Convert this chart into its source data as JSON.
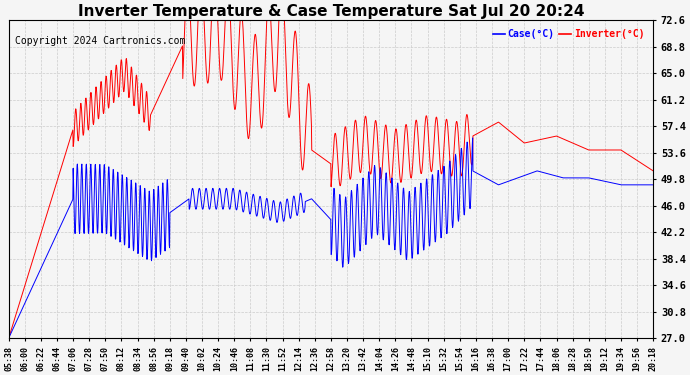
{
  "title": "Inverter Temperature & Case Temperature Sat Jul 20 20:24",
  "copyright": "Copyright 2024 Cartronics.com",
  "ylabel_right_ticks": [
    27.0,
    30.8,
    34.6,
    38.4,
    42.2,
    46.0,
    49.8,
    53.6,
    57.4,
    61.2,
    65.0,
    68.8,
    72.6
  ],
  "ylim": [
    27.0,
    72.6
  ],
  "legend_labels": [
    "Case(°C)",
    "Inverter(°C)"
  ],
  "legend_colors": [
    "blue",
    "red"
  ],
  "title_fontsize": 11,
  "copyright_fontsize": 7,
  "background_color": "#f5f5f5",
  "grid_color": "#cccccc",
  "x_tick_labels": [
    "05:38",
    "06:00",
    "06:22",
    "06:44",
    "07:06",
    "07:28",
    "07:50",
    "08:12",
    "08:34",
    "08:56",
    "09:18",
    "09:40",
    "10:02",
    "10:24",
    "10:46",
    "11:08",
    "11:30",
    "11:52",
    "12:14",
    "12:36",
    "12:58",
    "13:20",
    "13:42",
    "14:04",
    "14:26",
    "14:48",
    "15:10",
    "15:32",
    "15:54",
    "16:16",
    "16:38",
    "17:00",
    "17:22",
    "17:44",
    "18:06",
    "18:28",
    "18:50",
    "19:12",
    "19:34",
    "19:56",
    "20:18"
  ]
}
